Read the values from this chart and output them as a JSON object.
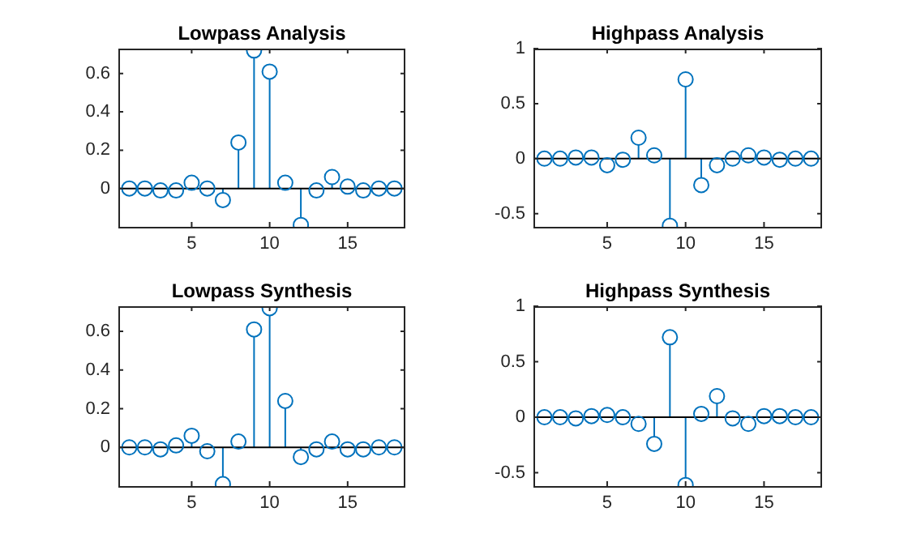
{
  "chart_data": [
    {
      "type": "lollipop",
      "title": "Lowpass Analysis",
      "x": [
        1,
        2,
        3,
        4,
        5,
        6,
        7,
        8,
        9,
        10,
        11,
        12,
        13,
        14,
        15,
        16,
        17,
        18
      ],
      "xlim": [
        0.3,
        18.7
      ],
      "xticks": [
        5,
        10,
        15
      ],
      "ylim": [
        -0.2,
        0.73
      ],
      "yticks": [
        0,
        0.2,
        0.4,
        0.6
      ],
      "marker": "circle",
      "grid": false,
      "legend": false,
      "series": [
        {
          "color": "#0072bd",
          "values": [
            0,
            0,
            -0.01,
            -0.01,
            0.03,
            0,
            -0.06,
            0.24,
            0.72,
            0.61,
            0.03,
            -0.19,
            -0.01,
            0.06,
            0.01,
            -0.01,
            0,
            0
          ]
        }
      ],
      "ref_lines": [
        {
          "axis": "y",
          "value": 0,
          "color": "#000000"
        }
      ]
    },
    {
      "type": "lollipop",
      "title": "Highpass Analysis",
      "x": [
        1,
        2,
        3,
        4,
        5,
        6,
        7,
        8,
        9,
        10,
        11,
        12,
        13,
        14,
        15,
        16,
        17,
        18
      ],
      "xlim": [
        0.3,
        18.7
      ],
      "xticks": [
        5,
        10,
        15
      ],
      "ylim": [
        -0.62,
        1
      ],
      "yticks": [
        -0.5,
        0,
        0.5,
        1
      ],
      "marker": "circle",
      "grid": false,
      "legend": false,
      "series": [
        {
          "color": "#0072bd",
          "values": [
            0,
            0,
            0.01,
            0.01,
            -0.06,
            -0.01,
            0.19,
            0.03,
            -0.61,
            0.72,
            -0.24,
            -0.06,
            0,
            0.03,
            0.01,
            -0.01,
            0,
            0
          ]
        }
      ],
      "ref_lines": [
        {
          "axis": "y",
          "value": 0,
          "color": "#000000"
        }
      ]
    },
    {
      "type": "lollipop",
      "title": "Lowpass Synthesis",
      "x": [
        1,
        2,
        3,
        4,
        5,
        6,
        7,
        8,
        9,
        10,
        11,
        12,
        13,
        14,
        15,
        16,
        17,
        18
      ],
      "xlim": [
        0.3,
        18.7
      ],
      "xticks": [
        5,
        10,
        15
      ],
      "ylim": [
        -0.2,
        0.73
      ],
      "yticks": [
        0,
        0.2,
        0.4,
        0.6
      ],
      "marker": "circle",
      "grid": false,
      "legend": false,
      "series": [
        {
          "color": "#0072bd",
          "values": [
            0,
            0,
            -0.01,
            0.01,
            0.06,
            -0.02,
            -0.19,
            0.03,
            0.61,
            0.72,
            0.24,
            -0.05,
            -0.01,
            0.03,
            -0.01,
            -0.01,
            0,
            0
          ]
        }
      ],
      "ref_lines": [
        {
          "axis": "y",
          "value": 0,
          "color": "#000000"
        }
      ]
    },
    {
      "type": "lollipop",
      "title": "Highpass Synthesis",
      "x": [
        1,
        2,
        3,
        4,
        5,
        6,
        7,
        8,
        9,
        10,
        11,
        12,
        13,
        14,
        15,
        16,
        17,
        18
      ],
      "xlim": [
        0.3,
        18.7
      ],
      "xticks": [
        5,
        10,
        15
      ],
      "ylim": [
        -0.62,
        1
      ],
      "yticks": [
        -0.5,
        0,
        0.5,
        1
      ],
      "marker": "circle",
      "grid": false,
      "legend": false,
      "series": [
        {
          "color": "#0072bd",
          "values": [
            0,
            0,
            -0.01,
            0.01,
            0.02,
            0,
            -0.06,
            -0.24,
            0.72,
            -0.61,
            0.03,
            0.19,
            -0.01,
            -0.06,
            0.01,
            0.01,
            0,
            0
          ]
        }
      ],
      "ref_lines": [
        {
          "axis": "y",
          "value": 0,
          "color": "#000000"
        }
      ]
    }
  ]
}
